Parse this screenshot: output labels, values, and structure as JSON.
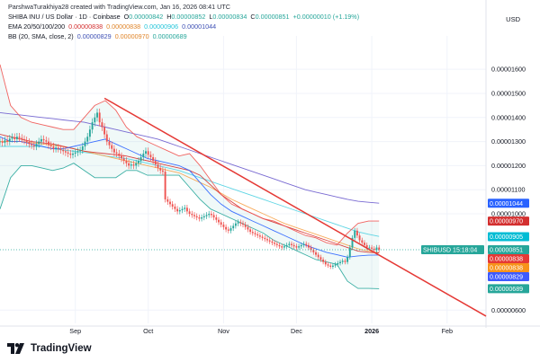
{
  "header": {
    "attribution": "ParshwaTurakhiya28 created with TradingView.com, Jan 16, 2026 08:41 UTC",
    "symbol_line": "SHIBA INU / US Dollar · 1D · Coinbase",
    "ohlc": {
      "o_label": "O",
      "o": "0.00000842",
      "h_label": "H",
      "h": "0.00000852",
      "l_label": "L",
      "l": "0.00000834",
      "c_label": "C",
      "c": "0.00000851",
      "change": "+0.00000010 (+1.19%)"
    },
    "ema": {
      "label": "EMA 20/50/100/200",
      "v20": "0.00000838",
      "v50": "0.00000838",
      "v100": "0.00000906",
      "v200": "0.00001044"
    },
    "bb": {
      "label": "BB (20, SMA, close, 2)",
      "basis": "0.00000829",
      "upper": "0.00000970",
      "lower": "0.00000689"
    },
    "currency": "USD"
  },
  "logo": {
    "text": "TradingView",
    "icon": "tradingview-logo-icon"
  },
  "colors": {
    "up": "#26a69a",
    "down": "#ef5350",
    "ema20": "#d32f2f",
    "ema50": "#f7a24a",
    "ema100": "#4dd0e1",
    "ema200": "#6a5acd",
    "bb_basis": "#2962ff",
    "bb_band": "#26a69a",
    "bb_upper": "#ef5350",
    "trendline": "#e53935",
    "current": "#26a69a"
  },
  "chart_data": {
    "type": "candlestick",
    "y_axis_labels": [
      "0.00001600",
      "0.00001500",
      "0.00001400",
      "0.00001300",
      "0.00001200",
      "0.00001100",
      "0.00001000",
      "0.00000600"
    ],
    "y_axis_values": [
      1.6e-05,
      1.5e-05,
      1.4e-05,
      1.3e-05,
      1.2e-05,
      1.1e-05,
      1e-05,
      6e-06
    ],
    "ylim": [
      5.45e-06,
      1.72e-05
    ],
    "x_axis_labels": [
      "Sep",
      "Oct",
      "Nov",
      "Dec",
      "2026",
      "Feb"
    ],
    "x_axis_dates": [
      "2025-09-01",
      "2025-10-01",
      "2025-11-01",
      "2025-12-01",
      "2026-01-01",
      "2026-02-01"
    ],
    "xlim": [
      "2025-08-01",
      "2026-02-17"
    ],
    "price_labels": [
      {
        "name": "EMA 200",
        "value": "0.00001044"
      },
      {
        "name": "BB upper",
        "value": "0.00000970"
      },
      {
        "name": "EMA 100",
        "value": "0.00000905"
      },
      {
        "name": "SHIBUSD",
        "value": "0.00000851",
        "countdown": "15:18:04"
      },
      {
        "name": "EMA 20",
        "value": "0.00000838"
      },
      {
        "name": "EMA 50",
        "value": "0.00000838"
      },
      {
        "name": "BB basis",
        "value": "0.00000829"
      },
      {
        "name": "BB lower",
        "value": "0.00000689"
      }
    ],
    "start_date": "2025-08-01",
    "closes": [
      1.3,
      1.295,
      1.305,
      1.3,
      1.312,
      1.318,
      1.31,
      1.32,
      1.315,
      1.31,
      1.305,
      1.298,
      1.29,
      1.285,
      1.28,
      1.29,
      1.3,
      1.31,
      1.305,
      1.3,
      1.285,
      1.28,
      1.27,
      1.275,
      1.27,
      1.265,
      1.26,
      1.255,
      1.25,
      1.245,
      1.25,
      1.255,
      1.26,
      1.265,
      1.28,
      1.3,
      1.32,
      1.35,
      1.38,
      1.4,
      1.42,
      1.38,
      1.36,
      1.33,
      1.3,
      1.285,
      1.27,
      1.255,
      1.25,
      1.24,
      1.23,
      1.22,
      1.21,
      1.2,
      1.205,
      1.2,
      1.21,
      1.22,
      1.235,
      1.25,
      1.26,
      1.245,
      1.235,
      1.22,
      1.205,
      1.19,
      1.18,
      1.175,
      1.06,
      1.05,
      1.04,
      1.03,
      1.02,
      1.01,
      1.015,
      1.02,
      1.025,
      1.01,
      1.0,
      0.995,
      0.99,
      0.985,
      0.98,
      0.985,
      0.99,
      0.995,
      1.0,
      0.995,
      0.985,
      0.975,
      0.965,
      0.955,
      0.945,
      0.935,
      0.93,
      0.94,
      0.95,
      0.96,
      0.965,
      0.96,
      0.955,
      0.945,
      0.935,
      0.925,
      0.92,
      0.915,
      0.91,
      0.905,
      0.9,
      0.895,
      0.89,
      0.885,
      0.88,
      0.875,
      0.87,
      0.865,
      0.86,
      0.865,
      0.87,
      0.875,
      0.87,
      0.865,
      0.86,
      0.865,
      0.87,
      0.875,
      0.87,
      0.86,
      0.85,
      0.84,
      0.83,
      0.82,
      0.81,
      0.8,
      0.79,
      0.785,
      0.78,
      0.785,
      0.79,
      0.795,
      0.8,
      0.805,
      0.8,
      0.82,
      0.86,
      0.9,
      0.93,
      0.91,
      0.89,
      0.88,
      0.87,
      0.86,
      0.86,
      0.855,
      0.85,
      0.86,
      0.851
    ],
    "scale": 1e-05,
    "lines": {
      "ema20": [
        1.33,
        1.32,
        1.31,
        1.3,
        1.295,
        1.29,
        1.28,
        1.27,
        1.26,
        1.255,
        1.25,
        1.245,
        1.24,
        1.23,
        1.22,
        1.21,
        1.2,
        1.19,
        1.18,
        1.16,
        1.12,
        1.08,
        1.05,
        1.02,
        1.0,
        0.98,
        0.965,
        0.95,
        0.935,
        0.92,
        0.905,
        0.89,
        0.875,
        0.86,
        0.845,
        0.84,
        0.838
      ],
      "ema50": [
        1.3,
        1.3,
        1.3,
        1.295,
        1.29,
        1.285,
        1.28,
        1.27,
        1.26,
        1.25,
        1.24,
        1.23,
        1.22,
        1.21,
        1.2,
        1.19,
        1.18,
        1.17,
        1.15,
        1.13,
        1.11,
        1.085,
        1.06,
        1.04,
        1.02,
        1.0,
        0.98,
        0.96,
        0.945,
        0.93,
        0.915,
        0.9,
        0.885,
        0.87,
        0.855,
        0.845,
        0.838
      ],
      "ema100": [
        1.28,
        1.28,
        1.28,
        1.28,
        1.28,
        1.27,
        1.265,
        1.26,
        1.255,
        1.25,
        1.24,
        1.235,
        1.23,
        1.22,
        1.21,
        1.2,
        1.19,
        1.18,
        1.165,
        1.15,
        1.135,
        1.12,
        1.105,
        1.09,
        1.075,
        1.06,
        1.045,
        1.03,
        1.015,
        1.0,
        0.985,
        0.97,
        0.955,
        0.94,
        0.925,
        0.915,
        0.906
      ],
      "ema200": [
        1.42,
        1.415,
        1.41,
        1.405,
        1.4,
        1.395,
        1.39,
        1.385,
        1.38,
        1.37,
        1.36,
        1.35,
        1.34,
        1.33,
        1.32,
        1.31,
        1.295,
        1.28,
        1.265,
        1.25,
        1.235,
        1.22,
        1.205,
        1.19,
        1.175,
        1.16,
        1.145,
        1.13,
        1.115,
        1.1,
        1.09,
        1.08,
        1.07,
        1.06,
        1.052,
        1.048,
        1.044
      ],
      "bb_upper": [
        1.62,
        1.45,
        1.4,
        1.38,
        1.37,
        1.36,
        1.35,
        1.35,
        1.4,
        1.45,
        1.47,
        1.43,
        1.36,
        1.32,
        1.3,
        1.28,
        1.26,
        1.24,
        1.25,
        1.2,
        1.14,
        1.08,
        1.04,
        1.02,
        1.0,
        0.98,
        0.97,
        0.95,
        0.93,
        0.91,
        0.9,
        0.88,
        0.87,
        0.92,
        0.96,
        0.97,
        0.97
      ],
      "bb_basis": [
        1.32,
        1.3,
        1.3,
        1.29,
        1.28,
        1.27,
        1.27,
        1.28,
        1.29,
        1.3,
        1.31,
        1.29,
        1.27,
        1.25,
        1.23,
        1.22,
        1.21,
        1.2,
        1.18,
        1.13,
        1.08,
        1.04,
        1.01,
        0.99,
        0.97,
        0.95,
        0.93,
        0.91,
        0.89,
        0.87,
        0.855,
        0.84,
        0.83,
        0.82,
        0.825,
        0.828,
        0.829
      ],
      "bb_lower": [
        1.02,
        1.15,
        1.2,
        1.2,
        1.19,
        1.18,
        1.19,
        1.21,
        1.18,
        1.15,
        1.15,
        1.15,
        1.18,
        1.18,
        1.16,
        1.16,
        1.16,
        1.16,
        1.11,
        1.06,
        1.02,
        1.0,
        0.98,
        0.96,
        0.94,
        0.92,
        0.89,
        0.87,
        0.85,
        0.83,
        0.81,
        0.8,
        0.79,
        0.72,
        0.69,
        0.69,
        0.689
      ]
    },
    "trendline": {
      "from": [
        "2025-09-13",
        1.48
      ],
      "to": [
        "2026-02-17",
        0.575
      ]
    },
    "current_price": 0.851
  }
}
